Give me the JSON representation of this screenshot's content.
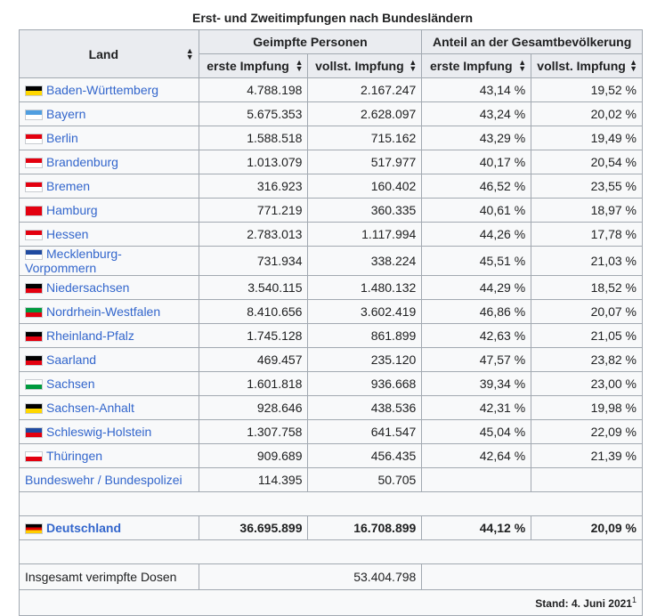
{
  "caption": "Erst- und Zweitimpfungen nach Bundesländern",
  "headers": {
    "land": "Land",
    "group1": "Geimpfte Personen",
    "group2": "Anteil an der Gesamtbevölkerung",
    "sub": [
      "erste Impfung",
      "vollst. Impfung",
      "erste Impfung",
      "vollst. Impfung"
    ]
  },
  "rows": [
    {
      "land": "Baden-Württemberg",
      "flag": [
        "#000000",
        "#ffd700"
      ],
      "v": [
        "4.788.198",
        "2.167.247",
        "43,14 %",
        "19,52 %"
      ]
    },
    {
      "land": "Bayern",
      "flag": [
        "#4f9ee0",
        "#ffffff"
      ],
      "v": [
        "5.675.353",
        "2.628.097",
        "43,24 %",
        "20,02 %"
      ]
    },
    {
      "land": "Berlin",
      "flag": [
        "#e3000f",
        "#ffffff"
      ],
      "v": [
        "1.588.518",
        "715.162",
        "43,29 %",
        "19,49 %"
      ]
    },
    {
      "land": "Brandenburg",
      "flag": [
        "#e3000f",
        "#ffffff"
      ],
      "v": [
        "1.013.079",
        "517.977",
        "40,17 %",
        "20,54 %"
      ]
    },
    {
      "land": "Bremen",
      "flag": [
        "#e3000f",
        "#ffffff"
      ],
      "v": [
        "316.923",
        "160.402",
        "46,52 %",
        "23,55 %"
      ]
    },
    {
      "land": "Hamburg",
      "flag": [
        "#e3000f",
        "#e3000f"
      ],
      "v": [
        "771.219",
        "360.335",
        "40,61 %",
        "18,97 %"
      ]
    },
    {
      "land": "Hessen",
      "flag": [
        "#e3000f",
        "#ffffff"
      ],
      "v": [
        "2.783.013",
        "1.117.994",
        "44,26 %",
        "17,78 %"
      ]
    },
    {
      "land": "Mecklenburg-Vorpommern",
      "flag": [
        "#1f4aa0",
        "#ffffff"
      ],
      "v": [
        "731.934",
        "338.224",
        "45,51 %",
        "21,03 %"
      ]
    },
    {
      "land": "Niedersachsen",
      "flag": [
        "#000000",
        "#e3000f"
      ],
      "v": [
        "3.540.115",
        "1.480.132",
        "44,29 %",
        "18,52 %"
      ]
    },
    {
      "land": "Nordrhein-Westfalen",
      "flag": [
        "#009a3e",
        "#e3000f"
      ],
      "v": [
        "8.410.656",
        "3.602.419",
        "46,86 %",
        "20,07 %"
      ]
    },
    {
      "land": "Rheinland-Pfalz",
      "flag": [
        "#000000",
        "#e3000f"
      ],
      "v": [
        "1.745.128",
        "861.899",
        "42,63 %",
        "21,05 %"
      ]
    },
    {
      "land": "Saarland",
      "flag": [
        "#000000",
        "#e3000f"
      ],
      "v": [
        "469.457",
        "235.120",
        "47,57 %",
        "23,82 %"
      ]
    },
    {
      "land": "Sachsen",
      "flag": [
        "#ffffff",
        "#009a3e"
      ],
      "v": [
        "1.601.818",
        "936.668",
        "39,34 %",
        "23,00 %"
      ]
    },
    {
      "land": "Sachsen-Anhalt",
      "flag": [
        "#000000",
        "#ffd700"
      ],
      "v": [
        "928.646",
        "438.536",
        "42,31 %",
        "19,98 %"
      ]
    },
    {
      "land": "Schleswig-Holstein",
      "flag": [
        "#1f4aa0",
        "#e3000f"
      ],
      "v": [
        "1.307.758",
        "641.547",
        "45,04 %",
        "22,09 %"
      ]
    },
    {
      "land": "Thüringen",
      "flag": [
        "#ffffff",
        "#e3000f"
      ],
      "v": [
        "909.689",
        "456.435",
        "42,64 %",
        "21,39 %"
      ]
    }
  ],
  "bw": {
    "land": "Bundeswehr / Bundespolizei",
    "v": [
      "114.395",
      "50.705"
    ]
  },
  "total": {
    "land": "Deutschland",
    "v": [
      "36.695.899",
      "16.708.899",
      "44,12 %",
      "20,09 %"
    ]
  },
  "doses": {
    "label": "Insgesamt verimpfte Dosen",
    "value": "53.404.798"
  },
  "footer": {
    "text": "Stand: 4. Juni 2021",
    "ref": "1"
  }
}
